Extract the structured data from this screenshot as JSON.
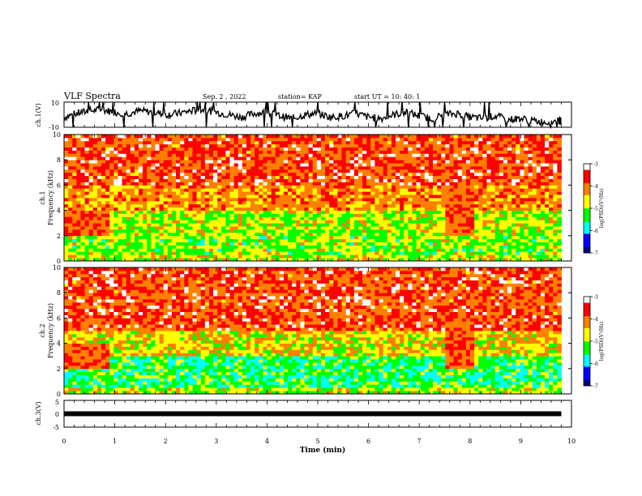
{
  "header": {
    "title": "VLF Spectra",
    "date": "Sep. 2 , 2022",
    "station": "station= KAP",
    "start": "start  UT  =   10: 40: 1"
  },
  "chart_data": [
    {
      "type": "line",
      "panel": "ch1-waveform",
      "ylabel": "ch.1(V)",
      "ylim": [
        -10,
        10
      ],
      "y_ticklabels": [
        "10",
        "-10"
      ],
      "xlim": [
        0,
        10
      ],
      "series": [
        {
          "x": [
            0,
            0.25,
            0.5,
            0.75,
            1,
            1.25,
            1.5,
            1.75,
            2,
            2.25,
            2.5,
            2.75,
            3,
            3.25,
            3.5,
            3.75,
            4,
            4.25,
            4.5,
            4.75,
            5,
            5.25,
            5.5,
            5.75,
            6,
            6.25,
            6.5,
            6.75,
            7,
            7.25,
            7.5,
            7.75,
            8,
            8.25,
            8.5,
            8.75,
            9,
            9.25,
            9.5,
            9.75,
            9.8
          ],
          "values": [
            -2,
            1,
            3,
            4,
            2,
            1,
            3,
            2,
            0,
            1,
            3,
            4,
            2,
            0,
            -2,
            1,
            2,
            -1,
            -3,
            0,
            1,
            -2,
            -1,
            1,
            -2,
            -3,
            0,
            2,
            -1,
            -3,
            0,
            1,
            -2,
            -3,
            -1,
            -4,
            -3,
            -5,
            -6,
            -5,
            -5
          ]
        }
      ]
    },
    {
      "type": "heatmap",
      "panel": "ch1-spectrogram",
      "ylabel": "ch.1\nFrequency  (kHz)",
      "y_ticklabels": [
        "0",
        "2",
        "4",
        "6",
        "8",
        "10"
      ],
      "ylim": [
        0,
        10
      ],
      "xlim": [
        0,
        9.8
      ],
      "colorbar": {
        "label": "log(PSD)(V²/Hz)",
        "ticklabels": [
          "-3",
          "-4",
          "-5",
          "-6",
          "-7"
        ],
        "range": [
          -7,
          -3
        ],
        "colors": [
          "#000080",
          "#0000ff",
          "#00ffff",
          "#00ff00",
          "#ffff00",
          "#ff8000",
          "#ff0000",
          "#ffffff"
        ]
      },
      "bands": [
        {
          "f": [
            0,
            0.6
          ],
          "psd": -4.8
        },
        {
          "f": [
            0.6,
            2.0
          ],
          "psd": -5.0
        },
        {
          "f": [
            2.0,
            4.0
          ],
          "psd": -4.9
        },
        {
          "f": [
            4.0,
            6.0
          ],
          "psd": -4.2
        },
        {
          "f": [
            6.0,
            10.0
          ],
          "psd": -3.8
        }
      ]
    },
    {
      "type": "heatmap",
      "panel": "ch2-spectrogram",
      "ylabel": "ch.2\nFrequency  (kHz)",
      "y_ticklabels": [
        "0",
        "2",
        "4",
        "6",
        "8",
        "10"
      ],
      "ylim": [
        0,
        10
      ],
      "xlim": [
        0,
        9.8
      ],
      "colorbar": {
        "label": "log(PSD)(V²/Hz)",
        "ticklabels": [
          "-3",
          "-4",
          "-5",
          "-6",
          "-7"
        ],
        "range": [
          -7,
          -3
        ],
        "colors": [
          "#000080",
          "#0000ff",
          "#00ffff",
          "#00ff00",
          "#ffff00",
          "#ff8000",
          "#ff0000",
          "#ffffff"
        ]
      },
      "bands": [
        {
          "f": [
            0,
            0.6
          ],
          "psd": -4.8
        },
        {
          "f": [
            0.6,
            3.0
          ],
          "psd": -5.4
        },
        {
          "f": [
            3.0,
            5.0
          ],
          "psd": -4.6
        },
        {
          "f": [
            5.0,
            10.0
          ],
          "psd": -3.8
        }
      ]
    },
    {
      "type": "line",
      "panel": "ch3-waveform",
      "ylabel": "ch.3(V)",
      "ylim": [
        -5,
        5
      ],
      "y_ticklabels": [
        "5",
        "0",
        "-5"
      ],
      "xlim": [
        0,
        10
      ],
      "x_ticklabels": [
        "0",
        "1",
        "2",
        "3",
        "4",
        "5",
        "6",
        "7",
        "8",
        "9",
        "10"
      ],
      "xlabel": "Time  (min)",
      "series": [
        {
          "x": [
            0,
            9.8
          ],
          "values": [
            0,
            0
          ]
        }
      ]
    }
  ]
}
